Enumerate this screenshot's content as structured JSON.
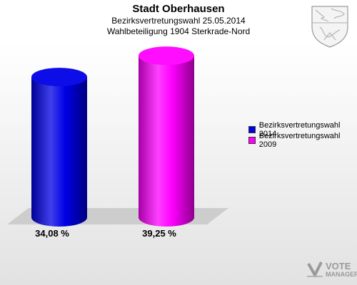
{
  "header": {
    "title": "Stadt Oberhausen",
    "subtitle_1": "Bezirksvertretungswahl 25.05.2014",
    "subtitle_2": "Wahlbeteiligung 1904 Sterkrade-Nord"
  },
  "chart_data": {
    "type": "bar",
    "title": "Stadt Oberhausen",
    "categories": [
      "Bezirksvertretungswahl 2014",
      "Bezirksvertretungswahl 2009"
    ],
    "values": [
      34.08,
      39.25
    ],
    "value_labels": [
      "34,08 %",
      "39,25 %"
    ],
    "colors": [
      "#0000e6",
      "#ff00ff"
    ],
    "ylim": [
      0,
      45
    ],
    "grid": false,
    "legend_position": "right"
  },
  "legend": {
    "items": [
      {
        "label": "Bezirksvertretungswahl 2014",
        "color": "#0000e6"
      },
      {
        "label": "Bezirksvertretungswahl 2009",
        "color": "#ff00ff"
      }
    ]
  },
  "watermark": {
    "line1": "VOTE",
    "line2": "MANAGER"
  },
  "icons": {
    "crest": "coat-of-arms-icon",
    "logo": "votemanager-logo-icon"
  }
}
